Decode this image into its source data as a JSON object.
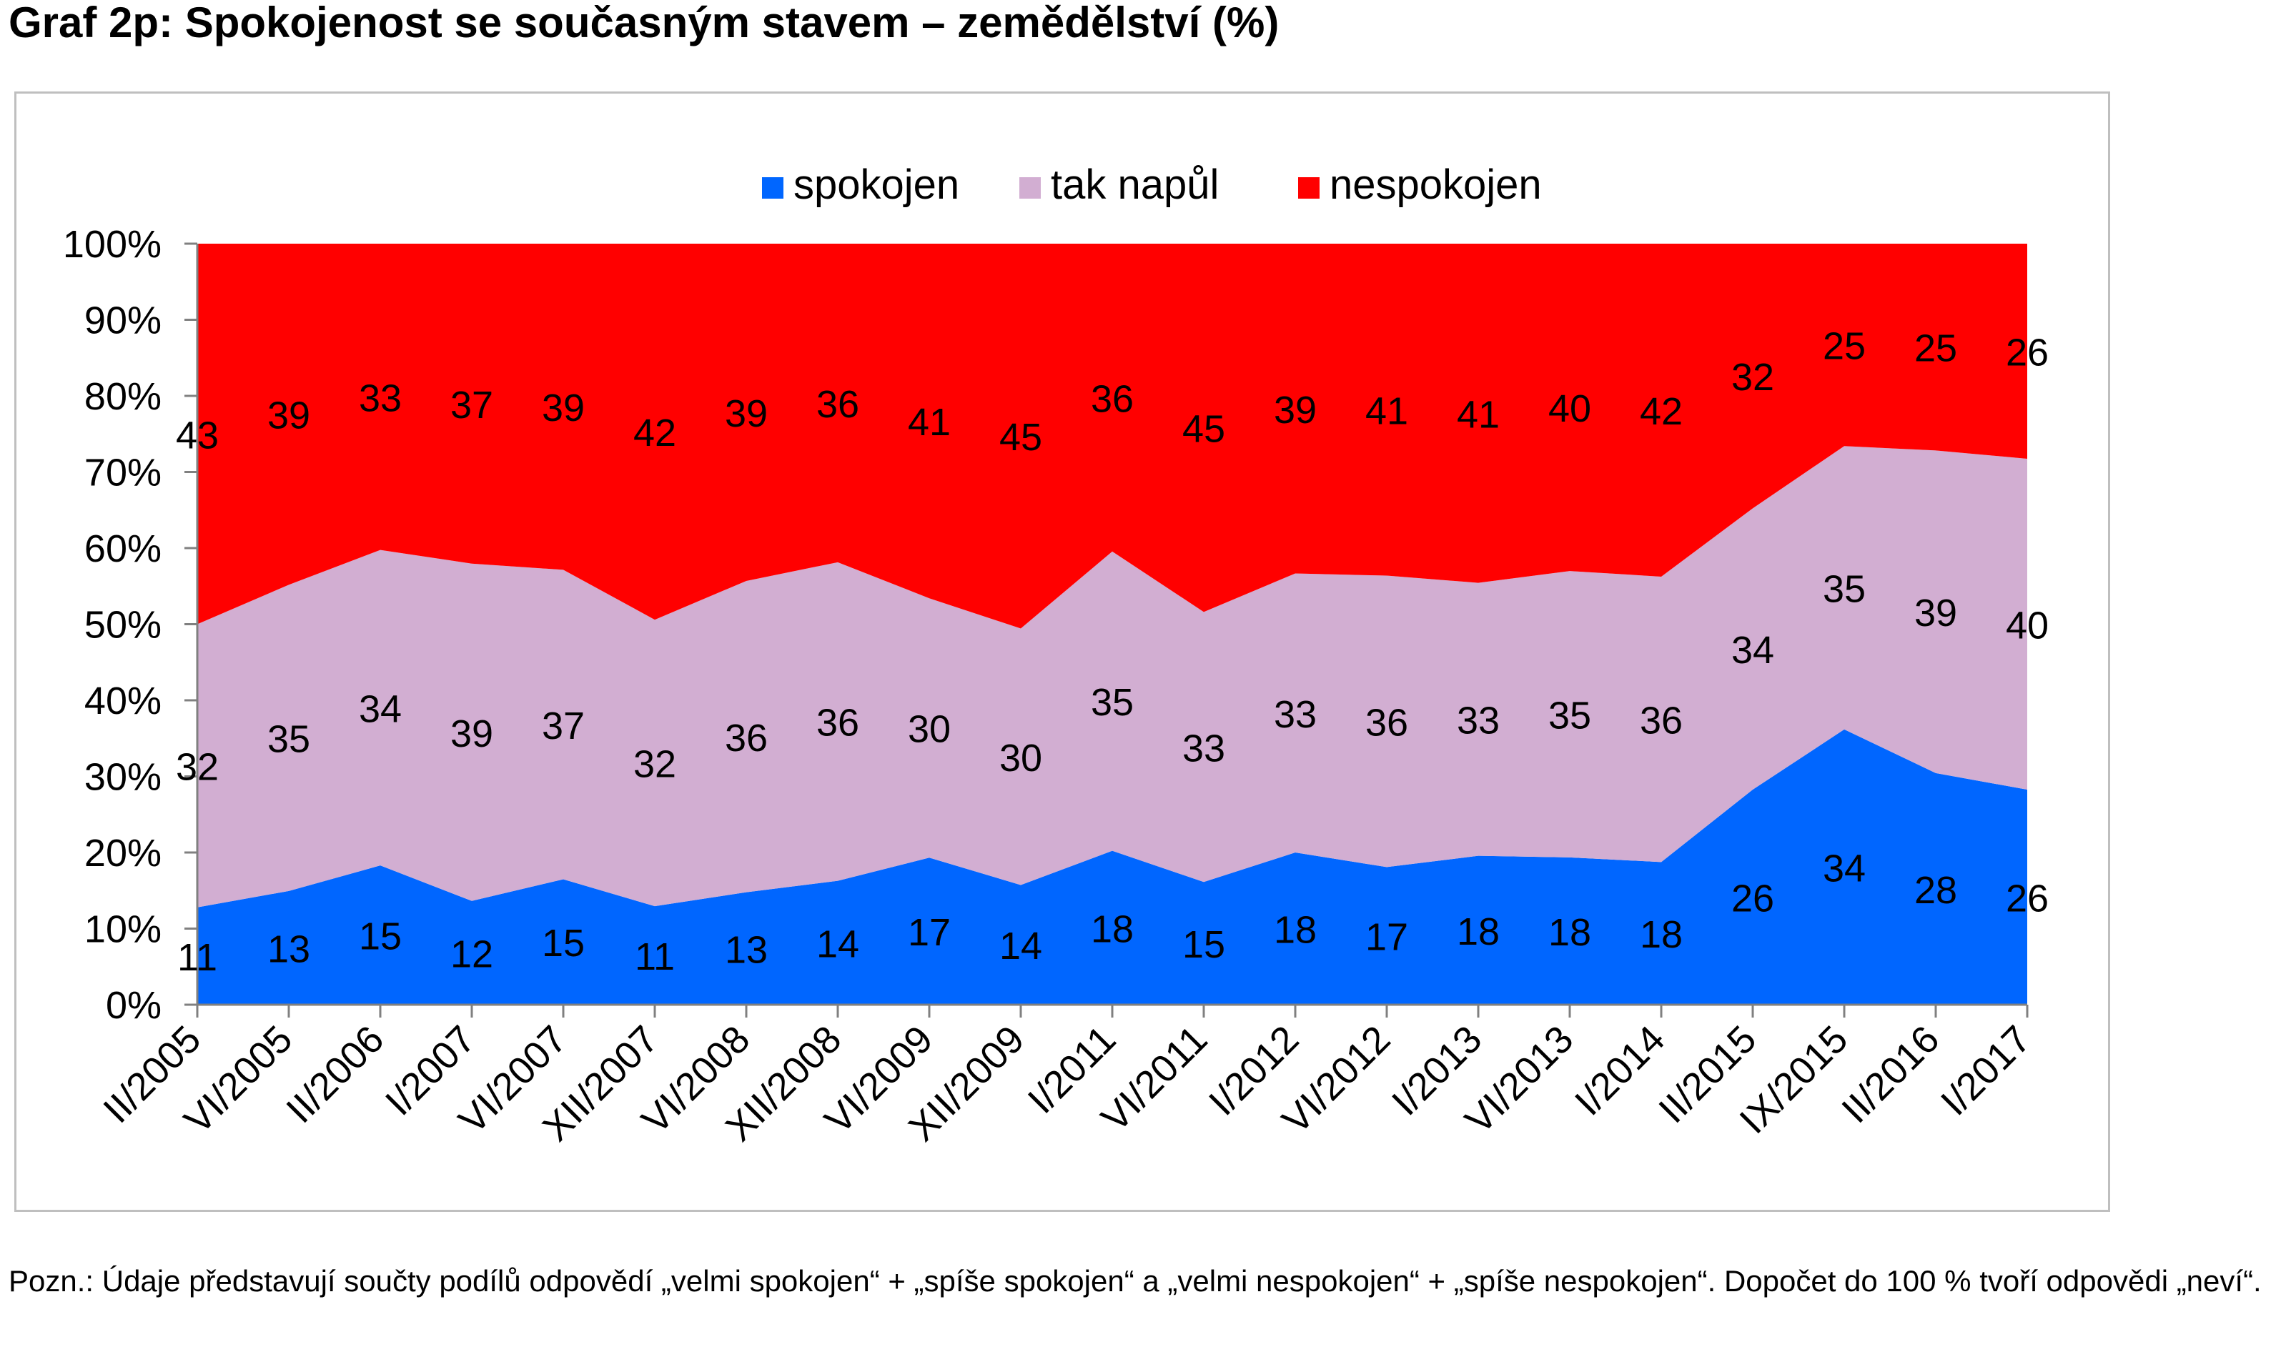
{
  "page": {
    "title": "Graf 2p: Spokojenost se současným stavem – zemědělství (%)",
    "footnote": "Pozn.: Údaje představují součty podílů odpovědí „velmi spokojen“ + „spíše spokojen“ a „velmi nespokojen“ + „spíše nespokojen“. Dopočet do 100 % tvoří odpovědi „neví“."
  },
  "chart_data": {
    "type": "area",
    "stacked": true,
    "title": "Graf 2p: Spokojenost se současným stavem – zemědělství (%)",
    "xlabel": "",
    "ylabel": "",
    "ylim": [
      0,
      100
    ],
    "y_ticks": [
      "0%",
      "10%",
      "20%",
      "30%",
      "40%",
      "50%",
      "60%",
      "70%",
      "80%",
      "90%",
      "100%"
    ],
    "legend_position": "top",
    "grid": false,
    "categories": [
      "II/2005",
      "VI/2005",
      "II/2006",
      "I/2007",
      "VI/2007",
      "XII/2007",
      "VI/2008",
      "XII/2008",
      "VI/2009",
      "XII/2009",
      "I/2011",
      "VI/2011",
      "I/2012",
      "VI/2012",
      "I/2013",
      "VI/2013",
      "I/2014",
      "II/2015",
      "IX/2015",
      "II/2016",
      "I/2017"
    ],
    "series": [
      {
        "name": "spokojen",
        "color": "#0066ff",
        "values": [
          11,
          13,
          15,
          12,
          15,
          11,
          13,
          14,
          17,
          14,
          18,
          15,
          18,
          17,
          18,
          18,
          18,
          26,
          34,
          28,
          26
        ]
      },
      {
        "name": "tak napůl",
        "color": "#d2aed2",
        "values": [
          32,
          35,
          34,
          39,
          37,
          32,
          36,
          36,
          30,
          30,
          35,
          33,
          33,
          36,
          33,
          35,
          36,
          34,
          35,
          39,
          40
        ]
      },
      {
        "name": "nespokojen",
        "color": "#ff0000",
        "values": [
          43,
          39,
          33,
          37,
          39,
          42,
          39,
          36,
          41,
          45,
          36,
          45,
          39,
          41,
          41,
          40,
          42,
          32,
          25,
          25,
          26
        ]
      }
    ]
  }
}
